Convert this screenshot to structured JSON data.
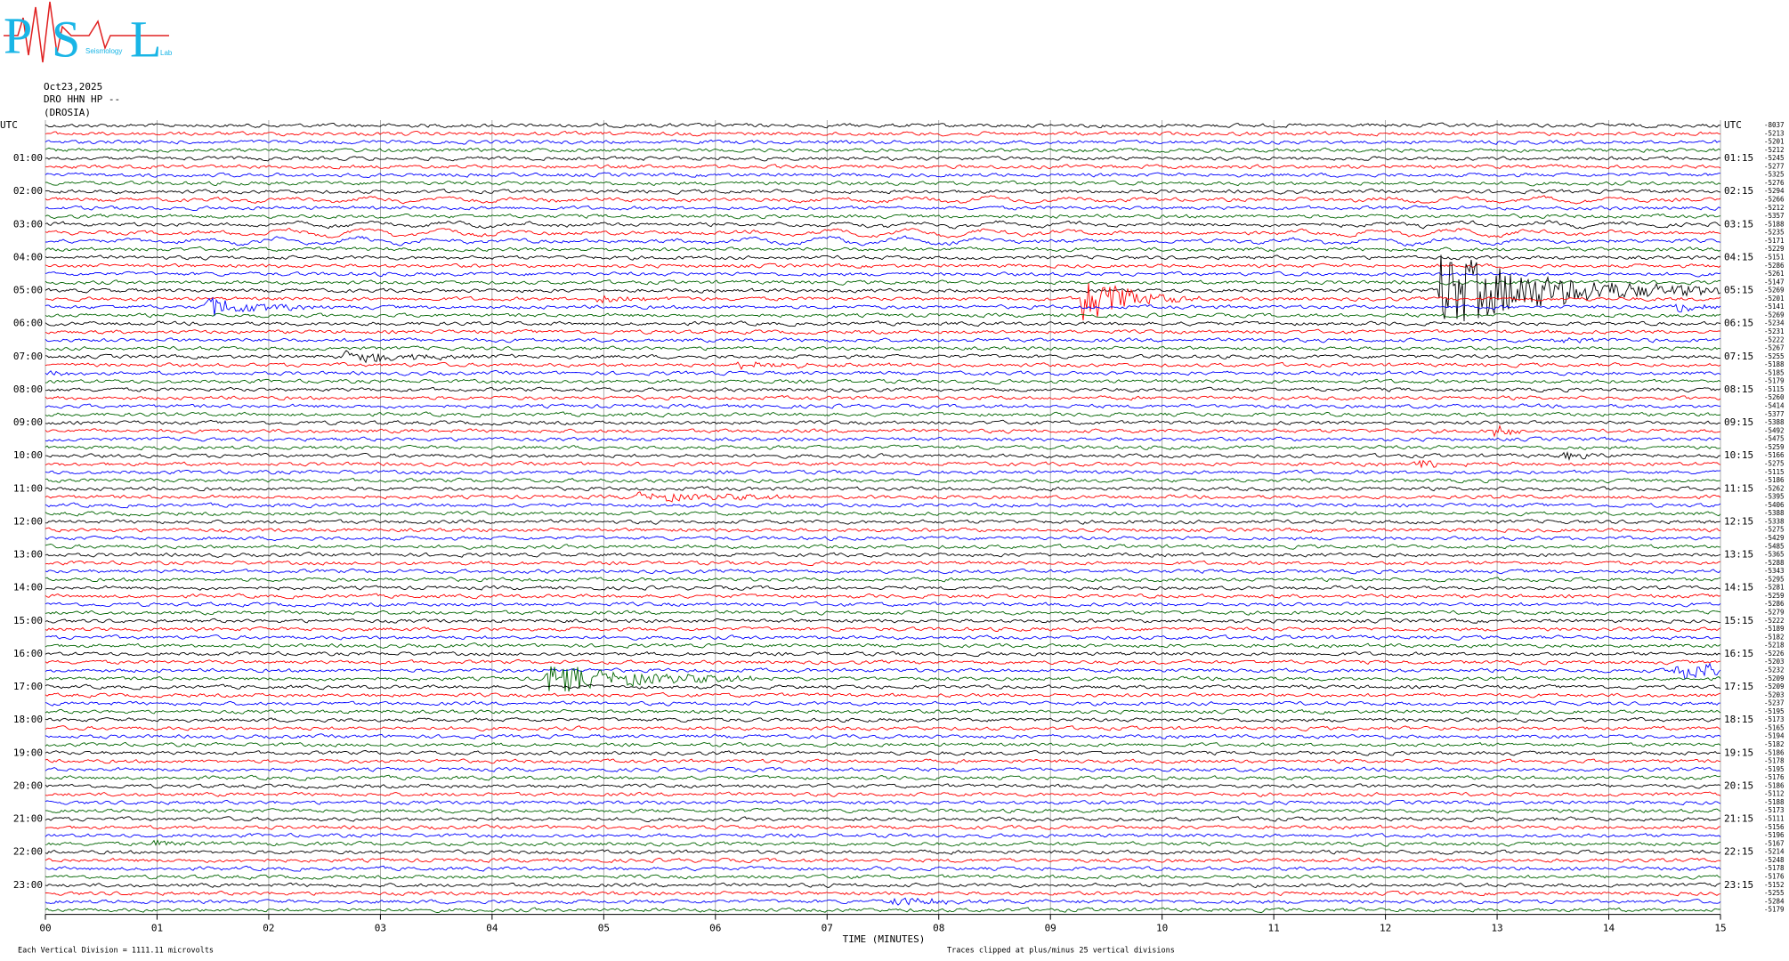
{
  "logo": {
    "letters": [
      "P",
      "S",
      "L"
    ],
    "words": [
      "Seismology",
      "Lab"
    ]
  },
  "header": {
    "date": "Oct23,2025",
    "channel": "DRO HHN HP --",
    "station": "(DROSIA)"
  },
  "chart_data": {
    "type": "helicorder",
    "colors": [
      "#000000",
      "#ff0000",
      "#0000ff",
      "#006400"
    ],
    "left_labels": [
      "UTC",
      "01:00",
      "02:00",
      "03:00",
      "04:00",
      "05:00",
      "06:00",
      "07:00",
      "08:00",
      "09:00",
      "10:00",
      "11:00",
      "12:00",
      "13:00",
      "14:00",
      "15:00",
      "16:00",
      "17:00",
      "18:00",
      "19:00",
      "20:00",
      "21:00",
      "22:00",
      "23:00"
    ],
    "right_labels": [
      "UTC",
      "01:15",
      "02:15",
      "03:15",
      "04:15",
      "05:15",
      "06:15",
      "07:15",
      "08:15",
      "09:15",
      "10:15",
      "11:15",
      "12:15",
      "13:15",
      "14:15",
      "15:15",
      "16:15",
      "17:15",
      "18:15",
      "19:15",
      "20:15",
      "21:15",
      "22:15",
      "23:15"
    ],
    "row_values": [
      -8037,
      -5213,
      -5201,
      -5212,
      -5245,
      -5277,
      -5325,
      -5276,
      -5294,
      -5266,
      -5212,
      -5357,
      -5188,
      -5235,
      -5171,
      -5229,
      -5151,
      -5286,
      -5261,
      -5147,
      -5269,
      -5201,
      -5141,
      -5269,
      -5234,
      -5231,
      -5222,
      -5267,
      -5255,
      -5188,
      -5185,
      -5179,
      -5115,
      -5260,
      -5414,
      -5377,
      -5388,
      -5492,
      -5475,
      -5259,
      -5166,
      -5275,
      -5115,
      -5186,
      -5262,
      -5395,
      -5406,
      -5388,
      -5338,
      -5275,
      -5429,
      -5485,
      -5365,
      -5288,
      -5343,
      -5295,
      -5281,
      -5259,
      -5286,
      -5279,
      -5222,
      -5189,
      -5182,
      -5218,
      -5226,
      -5203,
      -5232,
      -5209,
      -5209,
      -5203,
      -5237,
      -5195,
      -5173,
      -5165,
      -5194,
      -5182,
      -5186,
      -5178,
      -5195,
      -5176,
      -5186,
      -5112,
      -5188,
      -5173,
      -5111,
      -5156,
      -5196,
      -5167,
      -5214,
      -5248,
      -5178,
      -5176,
      -5152,
      -5255,
      -5284,
      -5179
    ],
    "xlim": [
      0,
      15
    ],
    "xticks": [
      {
        "value": 0,
        "label": "00"
      },
      {
        "value": 1,
        "label": "01"
      },
      {
        "value": 2,
        "label": "02"
      },
      {
        "value": 3,
        "label": "03"
      },
      {
        "value": 4,
        "label": "04"
      },
      {
        "value": 5,
        "label": "05"
      },
      {
        "value": 6,
        "label": "06"
      },
      {
        "value": 7,
        "label": "07"
      },
      {
        "value": 8,
        "label": "08"
      },
      {
        "value": 9,
        "label": "09"
      },
      {
        "value": 10,
        "label": "10"
      },
      {
        "value": 11,
        "label": "11"
      },
      {
        "value": 12,
        "label": "12"
      },
      {
        "value": 13,
        "label": "13"
      },
      {
        "value": 14,
        "label": "14"
      },
      {
        "value": 15,
        "label": "15"
      }
    ],
    "xlabel": "TIME (MINUTES)",
    "scale_note": "Each Vertical Division = 1111.11 microvolts",
    "clip_note": "Traces clipped at plus/minus 25 vertical divisions",
    "grid": true
  }
}
